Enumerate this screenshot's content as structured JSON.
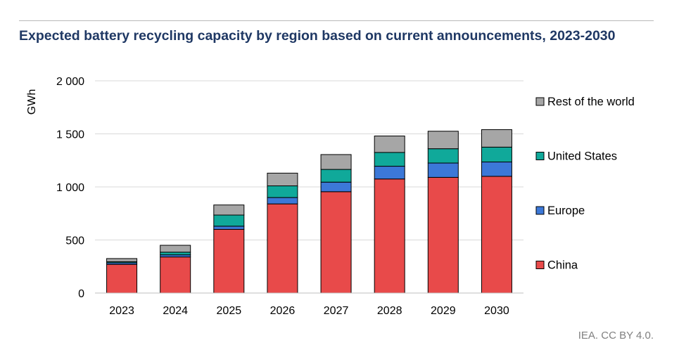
{
  "header": {
    "title": "Expected battery recycling capacity by region based on current announcements, 2023-2030"
  },
  "footer": {
    "credit": "IEA. CC BY 4.0."
  },
  "chart_data": {
    "type": "bar",
    "stacked": true,
    "title": "Expected battery recycling capacity by region based on current announcements, 2023-2030",
    "xlabel": "",
    "ylabel": "GWh",
    "ylim": [
      0,
      2000
    ],
    "yticks": [
      0,
      500,
      1000,
      1500,
      2000
    ],
    "ytick_labels": [
      "0",
      "500",
      "1 000",
      "1 500",
      "2 000"
    ],
    "grid": true,
    "legend_position": "right",
    "categories": [
      "2023",
      "2024",
      "2025",
      "2026",
      "2027",
      "2028",
      "2029",
      "2030"
    ],
    "series": [
      {
        "name": "China",
        "color": "#e84a4a",
        "values": [
          270,
          340,
          600,
          840,
          955,
          1075,
          1090,
          1100
        ]
      },
      {
        "name": "Europe",
        "color": "#3c78d8",
        "values": [
          15,
          20,
          30,
          60,
          90,
          120,
          135,
          135
        ]
      },
      {
        "name": "United States",
        "color": "#10a99a",
        "values": [
          10,
          25,
          105,
          110,
          120,
          130,
          135,
          140
        ]
      },
      {
        "name": "Rest of the world",
        "color": "#a6a6a6",
        "values": [
          30,
          65,
          95,
          120,
          140,
          155,
          165,
          165
        ]
      }
    ],
    "legend_order": [
      "Rest of the world",
      "United States",
      "Europe",
      "China"
    ]
  }
}
